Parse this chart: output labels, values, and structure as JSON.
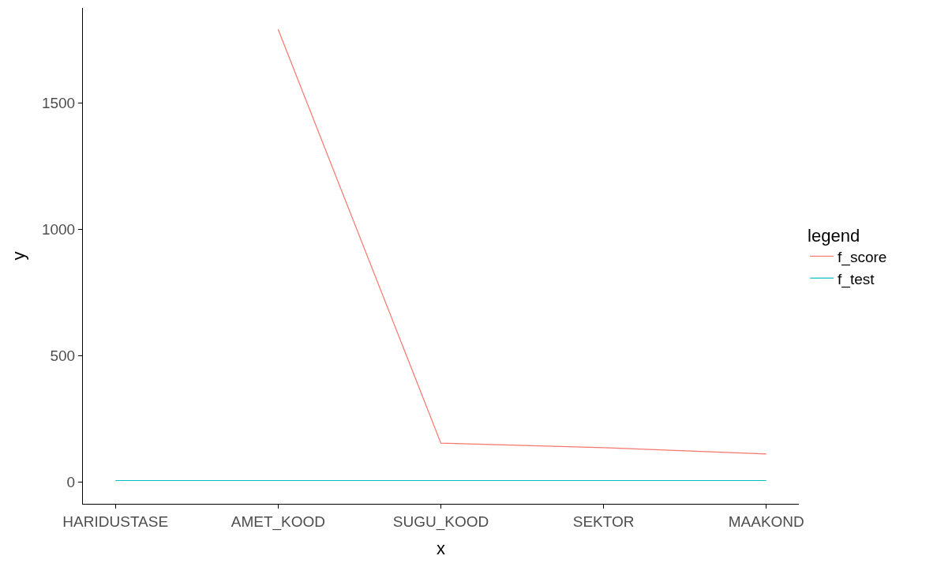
{
  "chart_data": {
    "type": "line",
    "xlabel": "x",
    "ylabel": "y",
    "legend_title": "legend",
    "categories": [
      "HARIDUSTASE",
      "AMET_KOOD",
      "SUGU_KOOD",
      "SEKTOR",
      "MAAKOND"
    ],
    "series": [
      {
        "name": "f_score",
        "color": "#f8766d",
        "values": [
          null,
          1790,
          155,
          137,
          112
        ]
      },
      {
        "name": "f_test",
        "color": "#00bfc4",
        "values": [
          7,
          7,
          7,
          7,
          7
        ]
      }
    ],
    "ylim": [
      -85,
      1875
    ],
    "yticks": [
      0,
      500,
      1000,
      1500
    ],
    "legend": "right",
    "marker": "none",
    "line_style": "solid"
  }
}
